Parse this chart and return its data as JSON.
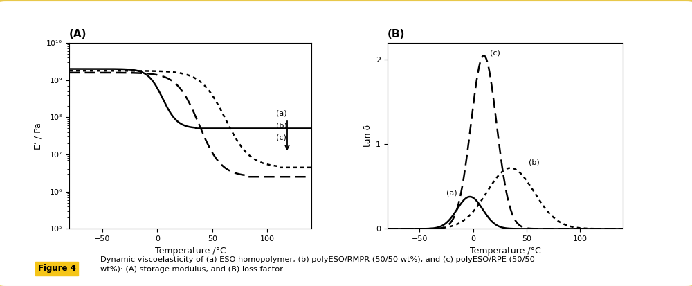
{
  "fig_width": 10.0,
  "fig_height": 4.13,
  "dpi": 100,
  "bg_color": "#ffffff",
  "border_color": "#e8c84a",
  "border_lw": 3,
  "panel_A_title": "(A)",
  "panel_B_title": "(B)",
  "xlabel": "Temperature /°C",
  "ylabel_A": "E’ / Pa",
  "ylabel_B": "tan δ",
  "A_xlim": [
    -80,
    140
  ],
  "A_xticks": [
    -50,
    0,
    50,
    100
  ],
  "A_yticks_exp": [
    5,
    6,
    7,
    8,
    9,
    10
  ],
  "A_ytick_labels": [
    "10⁵",
    "10⁶",
    "10⁷",
    "10⁸",
    "10⁹",
    "10¹⁰"
  ],
  "B_xlim": [
    -80,
    140
  ],
  "B_ylim": [
    0.0,
    2.2
  ],
  "B_xticks": [
    -50,
    0,
    50,
    100
  ],
  "B_yticks": [
    0.0,
    1.0,
    2.0
  ],
  "caption_label": "Figure 4",
  "caption_label_bg": "#f5c518",
  "caption_text": "Dynamic viscoelasticity of (a) ESO homopolymer, (b) polyESO/RMPR (50/50 wt%), and (c) polyESO/RPE (50/50\nwt%): (A) storage modulus, and (B) loss factor.",
  "line_color": "#000000",
  "line_lw": 1.8
}
